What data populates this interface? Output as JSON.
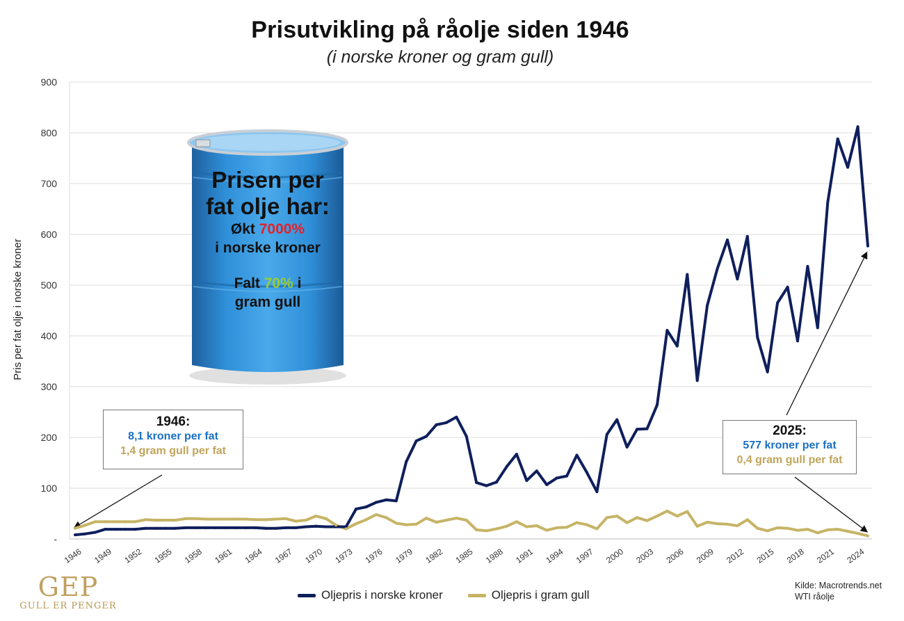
{
  "title": "Prisutvikling på råolje siden 1946",
  "subtitle": "(i norske kroner og gram gull)",
  "barrel": {
    "line1": "Prisen per",
    "line2": "fat olje har:",
    "line3_prefix": "Økt ",
    "line3_value": "7000%",
    "line4": "i norske kroner",
    "line5_prefix": "Falt ",
    "line5_value": "70%",
    "line5_suffix": " i",
    "line6": "gram gull",
    "colors": {
      "barrel": "#2a8fd6",
      "up": "#e0232a",
      "down": "#9acd32"
    }
  },
  "annotation_1946": {
    "year": "1946:",
    "nok": "8,1 kroner per fat",
    "gold": "1,4 gram gull per fat"
  },
  "annotation_2025": {
    "year": "2025:",
    "nok": "577 kroner per fat",
    "gold": "0,4 gram gull per fat"
  },
  "source": {
    "line1": "Kilde: Macrotrends.net",
    "line2": "WTI råolje"
  },
  "logo": {
    "mark": "GEP",
    "text": "GULL ER PENGER"
  },
  "chart_data": {
    "type": "line",
    "title": "Prisutvikling på råolje siden 1946",
    "subtitle": "(i norske kroner og gram gull)",
    "xlabel": "",
    "ylabel": "Pris per fat olje i norske kroner",
    "ylim": [
      0,
      900
    ],
    "yticks": [
      0,
      100,
      200,
      300,
      400,
      500,
      600,
      700,
      800,
      900
    ],
    "ytick_labels": [
      "-",
      "100",
      "200",
      "300",
      "400",
      "500",
      "600",
      "700",
      "800",
      "900"
    ],
    "xlim": [
      1946,
      2025
    ],
    "xticks": [
      1946,
      1949,
      1952,
      1955,
      1958,
      1961,
      1964,
      1967,
      1970,
      1973,
      1976,
      1979,
      1982,
      1985,
      1988,
      1991,
      1994,
      1997,
      2000,
      2003,
      2006,
      2009,
      2012,
      2015,
      2018,
      2021,
      2024
    ],
    "grid": true,
    "x": [
      1946,
      1947,
      1948,
      1949,
      1950,
      1951,
      1952,
      1953,
      1954,
      1955,
      1956,
      1957,
      1958,
      1959,
      1960,
      1961,
      1962,
      1963,
      1964,
      1965,
      1966,
      1967,
      1968,
      1969,
      1970,
      1971,
      1972,
      1973,
      1974,
      1975,
      1976,
      1977,
      1978,
      1979,
      1980,
      1981,
      1982,
      1983,
      1984,
      1985,
      1986,
      1987,
      1988,
      1989,
      1990,
      1991,
      1992,
      1993,
      1994,
      1995,
      1996,
      1997,
      1998,
      1999,
      2000,
      2001,
      2002,
      2003,
      2004,
      2005,
      2006,
      2007,
      2008,
      2009,
      2010,
      2011,
      2012,
      2013,
      2014,
      2015,
      2016,
      2017,
      2018,
      2019,
      2020,
      2021,
      2022,
      2023,
      2024,
      2025
    ],
    "series": [
      {
        "name": "Oljepris i norske kroner",
        "color": "#0f1f5c",
        "values": [
          8.1,
          10,
          13,
          19,
          19,
          19,
          19,
          21,
          21,
          21,
          21,
          22,
          22,
          22,
          22,
          22,
          22,
          22,
          22,
          21,
          21,
          22,
          22,
          24,
          25,
          24,
          24,
          24,
          59,
          63,
          72,
          77,
          75,
          152,
          193,
          202,
          225,
          229,
          240,
          202,
          111,
          105,
          112,
          142,
          167,
          115,
          134,
          107,
          120,
          124,
          165,
          131,
          93,
          206,
          235,
          181,
          216,
          217,
          264,
          411,
          380,
          521,
          312,
          460,
          532,
          589,
          512,
          596,
          397,
          329,
          465,
          496,
          390,
          537,
          416,
          663,
          788,
          732,
          812,
          577
        ]
      },
      {
        "name": "Oljepris i gram gull",
        "color": "#c6b466",
        "values": [
          21,
          27,
          34,
          34,
          34,
          34,
          34,
          38,
          37,
          37,
          37,
          40,
          40,
          39,
          39,
          39,
          39,
          39,
          38,
          38,
          39,
          40,
          35,
          37,
          45,
          40,
          27,
          20,
          30,
          38,
          48,
          42,
          31,
          28,
          29,
          41,
          33,
          37,
          41,
          37,
          18,
          16,
          20,
          25,
          34,
          24,
          26,
          17,
          22,
          23,
          32,
          28,
          20,
          42,
          45,
          32,
          42,
          36,
          45,
          55,
          45,
          54,
          25,
          33,
          30,
          29,
          26,
          38,
          21,
          16,
          22,
          21,
          17,
          19,
          12,
          18,
          19,
          15,
          11,
          6
        ]
      }
    ],
    "legend": "bottom-center"
  }
}
